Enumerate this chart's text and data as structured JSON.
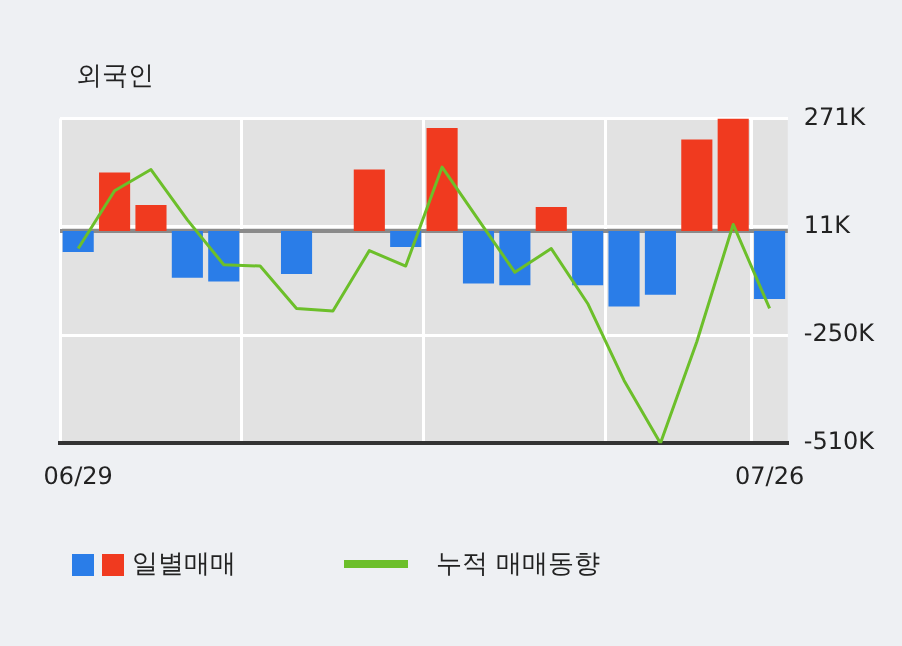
{
  "chart_data": {
    "type": "bar",
    "title": "외국인",
    "categories": [
      "06/29",
      null,
      null,
      null,
      null,
      null,
      null,
      null,
      null,
      null,
      null,
      null,
      null,
      null,
      null,
      null,
      null,
      null,
      null,
      "07/26"
    ],
    "series": [
      {
        "name": "일별매매",
        "colors": [
          "#2a7de8",
          "#f03a1f",
          "#f03a1f",
          "#2a7de8",
          "#2a7de8",
          "#2a7de8",
          "#2a7de8",
          "#2a7de8",
          "#f03a1f",
          "#2a7de8",
          "#f03a1f",
          "#2a7de8",
          "#2a7de8",
          "#f03a1f",
          "#2a7de8",
          "#2a7de8",
          "#2a7de8",
          "#f03a1f",
          "#f03a1f",
          "#2a7de8"
        ],
        "values": [
          -50,
          141,
          63,
          -112,
          -121,
          null,
          -103,
          null,
          148,
          -38,
          248,
          -126,
          -130,
          58,
          -130,
          -181,
          -153,
          220,
          271,
          -163
        ]
      },
      {
        "name": "누적 매매동향",
        "type": "line",
        "color": "#6cbf2a",
        "values": [
          -42,
          97,
          148,
          27,
          -81,
          -84,
          -186,
          -192,
          -47,
          -84,
          154,
          27,
          -99,
          -42,
          -174,
          -359,
          -510,
          -266,
          16,
          -186
        ]
      }
    ],
    "ylim": [
      -510,
      271
    ],
    "yticks": [
      {
        "value": 271,
        "label": "271K"
      },
      {
        "value": 11,
        "label": "11K"
      },
      {
        "value": -250,
        "label": "-250K"
      },
      {
        "value": -510,
        "label": "-510K"
      }
    ],
    "grid": true,
    "legend": "bottom",
    "marker": "none",
    "line_style": "solid"
  }
}
